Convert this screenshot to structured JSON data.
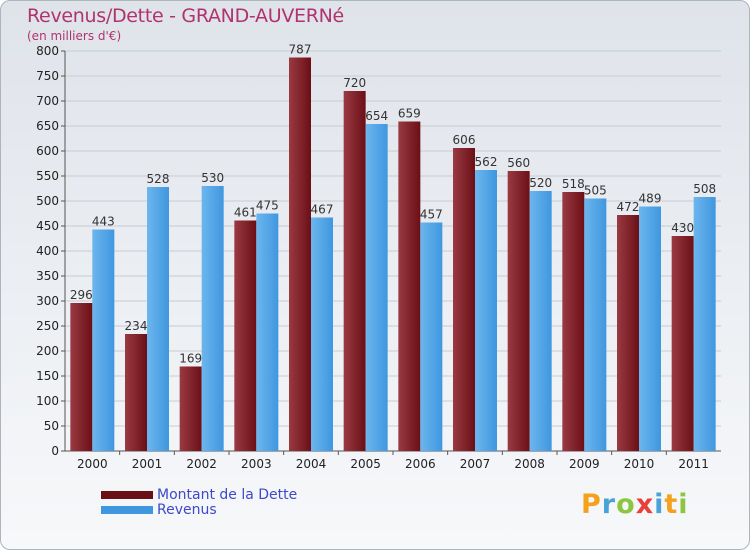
{
  "header": {
    "title": "Revenus/Dette - GRAND-AUVERNé",
    "subtitle": "(en milliers d'€)"
  },
  "legend": {
    "debt_label": "Montant de la Dette",
    "revenue_label": "Revenus"
  },
  "logo": {
    "text": "Proxiti",
    "colors": [
      "#f4a21b",
      "#4aa3d8",
      "#8cc63f",
      "#e8403a",
      "#4aa3d8",
      "#f4a21b",
      "#8cc63f"
    ]
  },
  "colors": {
    "debt": "#6b0f16",
    "debt_light": "#9a3a42",
    "revenue": "#3f97df",
    "revenue_light": "#6cb6ee",
    "title": "#b0336e",
    "legend_text": "#3d49c9"
  },
  "chart_data": {
    "type": "bar",
    "title": "Revenus/Dette - GRAND-AUVERNé",
    "subtitle": "(en milliers d'€)",
    "categories": [
      "2000",
      "2001",
      "2002",
      "2003",
      "2004",
      "2005",
      "2006",
      "2007",
      "2008",
      "2009",
      "2010",
      "2011"
    ],
    "series": [
      {
        "name": "Montant de la Dette",
        "values": [
          296,
          234,
          169,
          461,
          787,
          720,
          659,
          606,
          560,
          518,
          472,
          430
        ]
      },
      {
        "name": "Revenus",
        "values": [
          443,
          528,
          530,
          475,
          467,
          654,
          457,
          562,
          520,
          505,
          489,
          508
        ]
      }
    ],
    "ylim": [
      0,
      800
    ],
    "yticks": [
      0,
      50,
      100,
      150,
      200,
      250,
      300,
      350,
      400,
      450,
      500,
      550,
      600,
      650,
      700,
      750,
      800
    ],
    "grid": true,
    "legend_position": "bottom-left"
  }
}
